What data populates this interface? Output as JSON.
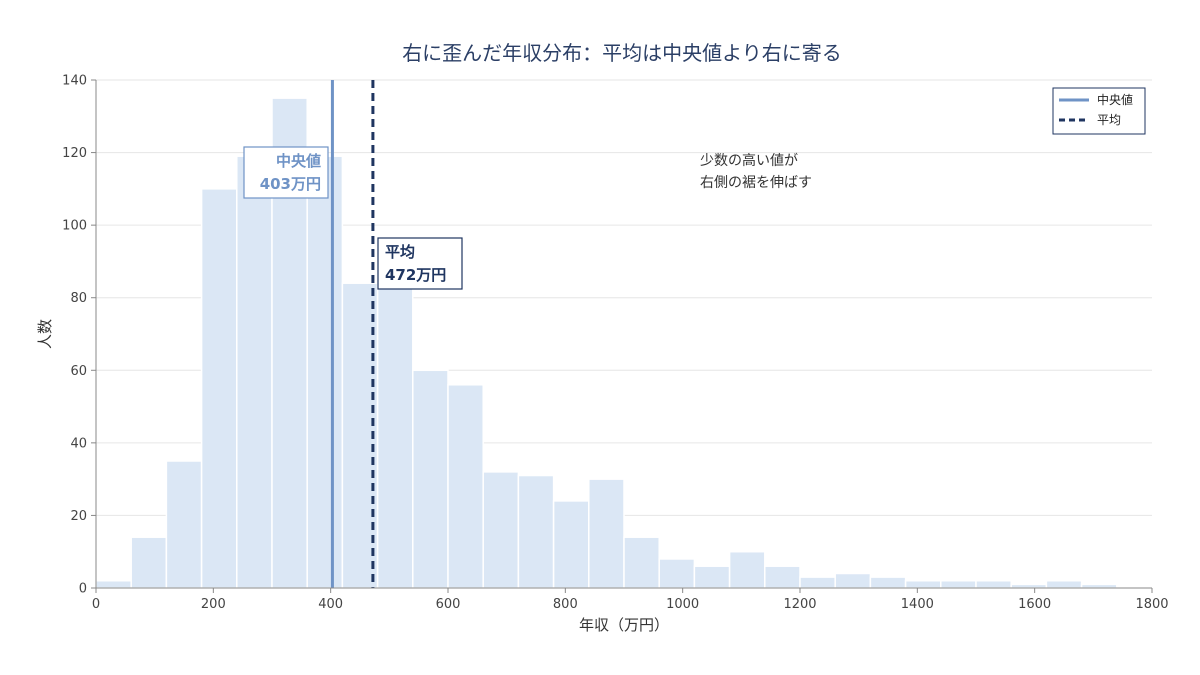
{
  "chart_data": {
    "type": "bar",
    "title": "右に歪んだ年収分布：平均は中央値より右に寄る",
    "xlabel": "年収（万円）",
    "ylabel": "人数",
    "xlim": [
      0,
      1800
    ],
    "ylim": [
      0,
      140
    ],
    "x_ticks": [
      0,
      200,
      400,
      600,
      800,
      1000,
      1200,
      1400,
      1600,
      1800
    ],
    "y_ticks": [
      0,
      20,
      40,
      60,
      80,
      100,
      120,
      140
    ],
    "grid": "horizontal",
    "bin_width": 60,
    "bins": [
      {
        "start": 0,
        "count": 2
      },
      {
        "start": 60,
        "count": 14
      },
      {
        "start": 120,
        "count": 35
      },
      {
        "start": 180,
        "count": 110
      },
      {
        "start": 240,
        "count": 119
      },
      {
        "start": 300,
        "count": 135
      },
      {
        "start": 360,
        "count": 119
      },
      {
        "start": 420,
        "count": 84
      },
      {
        "start": 480,
        "count": 84
      },
      {
        "start": 540,
        "count": 60
      },
      {
        "start": 600,
        "count": 56
      },
      {
        "start": 660,
        "count": 32
      },
      {
        "start": 720,
        "count": 31
      },
      {
        "start": 780,
        "count": 24
      },
      {
        "start": 840,
        "count": 30
      },
      {
        "start": 900,
        "count": 14
      },
      {
        "start": 960,
        "count": 8
      },
      {
        "start": 1020,
        "count": 6
      },
      {
        "start": 1080,
        "count": 10
      },
      {
        "start": 1140,
        "count": 6
      },
      {
        "start": 1200,
        "count": 3
      },
      {
        "start": 1260,
        "count": 4
      },
      {
        "start": 1320,
        "count": 3
      },
      {
        "start": 1380,
        "count": 2
      },
      {
        "start": 1440,
        "count": 2
      },
      {
        "start": 1500,
        "count": 2
      },
      {
        "start": 1560,
        "count": 1
      },
      {
        "start": 1620,
        "count": 2
      },
      {
        "start": 1680,
        "count": 1
      }
    ],
    "median": {
      "value": 403,
      "legend": "中央値",
      "label_line1": "中央値",
      "label_line2": "403万円",
      "color": "#6f93c6",
      "style": "solid"
    },
    "mean": {
      "value": 472,
      "legend": "平均",
      "label_line1": "平均",
      "label_line2": "472万円",
      "color": "#1f3560",
      "style": "dashed"
    },
    "annotation": [
      "少数の高い値が",
      "右側の裾を伸ばす"
    ],
    "legend_position": "top-right",
    "bar_color": "#dbe7f5"
  }
}
